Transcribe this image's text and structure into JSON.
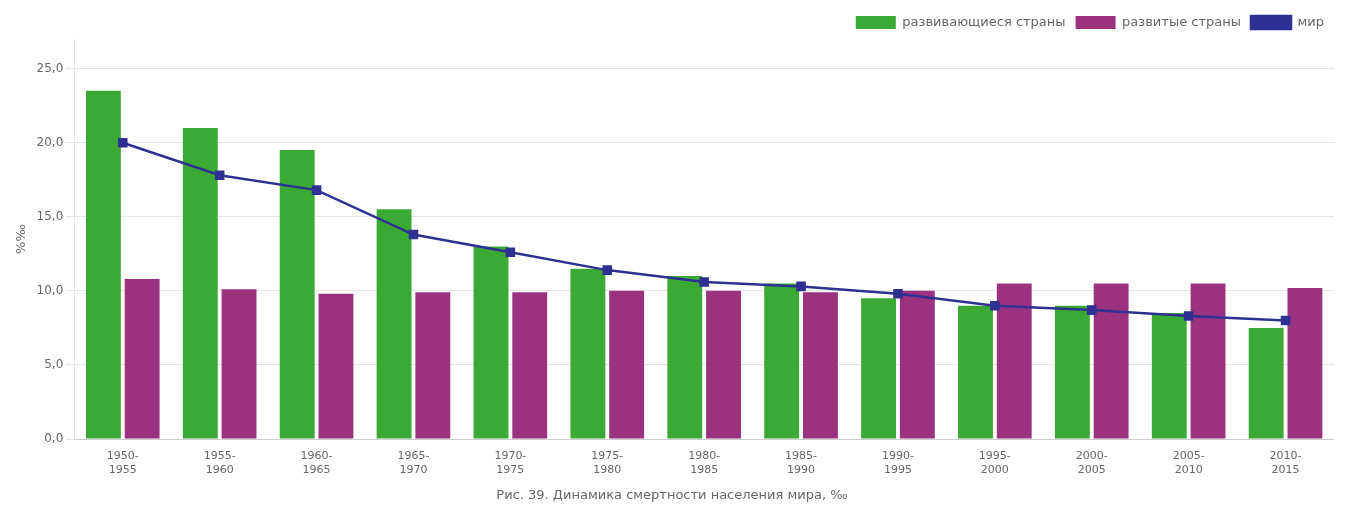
{
  "chart_data": {
    "type": "bar",
    "title": "Рис. 39. Динамика смертности населения мира, ‰",
    "ylabel": "%‰",
    "categories": [
      "1950-\n1955",
      "1955-\n1960",
      "1960-\n1965",
      "1965-\n1970",
      "1970-\n1975",
      "1975-\n1980",
      "1980-\n1985",
      "1985-\n1990",
      "1990-\n1995",
      "1995-\n2000",
      "2000-\n2005",
      "2005-\n2010",
      "2010-\n2015"
    ],
    "series": [
      {
        "name": "развивающиеся страны",
        "type": "bar",
        "color": "#3aaa35",
        "values": [
          23.5,
          21.0,
          19.5,
          15.5,
          13.0,
          11.5,
          11.0,
          10.5,
          9.5,
          9.0,
          9.0,
          8.5,
          7.5
        ]
      },
      {
        "name": "развитые страны",
        "type": "bar",
        "color": "#9b3280",
        "values": [
          10.8,
          10.1,
          9.8,
          9.9,
          9.9,
          10.0,
          10.0,
          9.9,
          10.0,
          10.5,
          10.5,
          10.5,
          10.2
        ]
      },
      {
        "name": "мир",
        "type": "line",
        "color": "#2e3192",
        "marker": "square",
        "values": [
          20.0,
          17.8,
          16.8,
          13.8,
          12.6,
          11.4,
          10.6,
          10.3,
          9.8,
          9.0,
          8.7,
          8.3,
          8.0
        ]
      }
    ],
    "ylim": [
      0,
      27
    ],
    "yticks": [
      {
        "value": 0,
        "label": "0,0"
      },
      {
        "value": 5,
        "label": "5,0"
      },
      {
        "value": 10,
        "label": "10,0"
      },
      {
        "value": 15,
        "label": "15,0"
      },
      {
        "value": 20,
        "label": "20,0"
      },
      {
        "value": 25,
        "label": "25,0"
      }
    ],
    "grid": true,
    "legend": "upper right"
  }
}
